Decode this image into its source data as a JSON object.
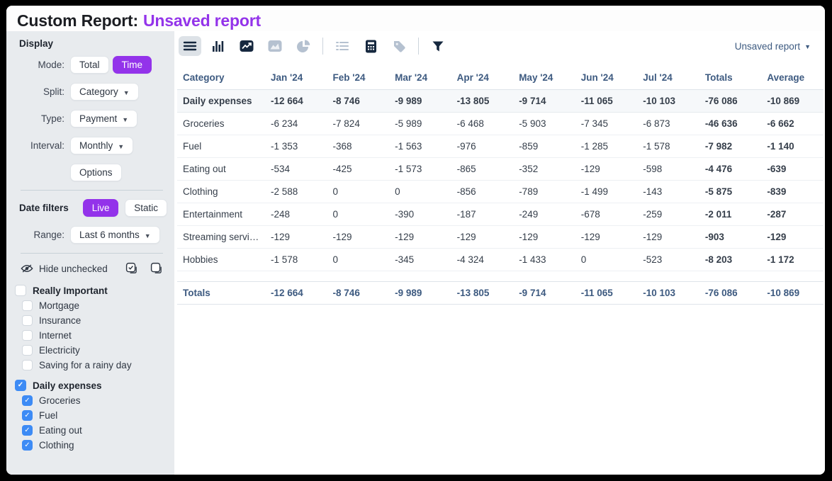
{
  "title": {
    "prefix": "Custom Report:",
    "report_name": "Unsaved report"
  },
  "colors": {
    "accent_purple": "#9333ea",
    "checkbox_blue": "#3d8bf5",
    "table_navy": "#3d5a80"
  },
  "sidebar": {
    "display": {
      "heading": "Display",
      "mode_label": "Mode:",
      "mode_options": [
        "Total",
        "Time"
      ],
      "mode_selected": "Time",
      "split_label": "Split:",
      "split_value": "Category",
      "type_label": "Type:",
      "type_value": "Payment",
      "interval_label": "Interval:",
      "interval_value": "Monthly",
      "options_button": "Options"
    },
    "date_filters": {
      "heading": "Date filters",
      "mode_options": [
        "Live",
        "Static"
      ],
      "mode_selected": "Live",
      "range_label": "Range:",
      "range_value": "Last 6 months"
    },
    "hide_unchecked_label": "Hide unchecked",
    "bulk_icons": [
      "check-all-icon",
      "uncheck-all-icon"
    ],
    "groups": [
      {
        "label": "Really Important",
        "checked": false,
        "children": [
          {
            "label": "Mortgage",
            "checked": false
          },
          {
            "label": "Insurance",
            "checked": false
          },
          {
            "label": "Internet",
            "checked": false
          },
          {
            "label": "Electricity",
            "checked": false
          },
          {
            "label": "Saving for a rainy day",
            "checked": false
          }
        ]
      },
      {
        "label": "Daily expenses",
        "checked": true,
        "children": [
          {
            "label": "Groceries",
            "checked": true
          },
          {
            "label": "Fuel",
            "checked": true
          },
          {
            "label": "Eating out",
            "checked": true
          },
          {
            "label": "Clothing",
            "checked": true
          }
        ]
      }
    ]
  },
  "toolbar": {
    "icons": [
      "table-rows-icon",
      "bar-chart-icon",
      "line-chart-icon",
      "area-chart-icon",
      "pie-chart-icon",
      "list-icon",
      "calculator-icon",
      "tag-icon",
      "filter-icon"
    ],
    "selected_icon": "table-rows-icon",
    "report_selector": "Unsaved report"
  },
  "table": {
    "columns": [
      "Category",
      "Jan '24",
      "Feb '24",
      "Mar '24",
      "Apr '24",
      "May '24",
      "Jun '24",
      "Jul '24",
      "Totals",
      "Average"
    ],
    "rows": [
      {
        "category": "Daily expenses",
        "bold": true,
        "values": [
          "-12 664",
          "-8 746",
          "-9 989",
          "-13 805",
          "-9 714",
          "-11 065",
          "-10 103",
          "-76 086",
          "-10 869"
        ]
      },
      {
        "category": "Groceries",
        "bold": false,
        "values": [
          "-6 234",
          "-7 824",
          "-5 989",
          "-6 468",
          "-5 903",
          "-7 345",
          "-6 873",
          "-46 636",
          "-6 662"
        ]
      },
      {
        "category": "Fuel",
        "bold": false,
        "values": [
          "-1 353",
          "-368",
          "-1 563",
          "-976",
          "-859",
          "-1 285",
          "-1 578",
          "-7 982",
          "-1 140"
        ]
      },
      {
        "category": "Eating out",
        "bold": false,
        "values": [
          "-534",
          "-425",
          "-1 573",
          "-865",
          "-352",
          "-129",
          "-598",
          "-4 476",
          "-639"
        ]
      },
      {
        "category": "Clothing",
        "bold": false,
        "values": [
          "-2 588",
          "0",
          "0",
          "-856",
          "-789",
          "-1 499",
          "-143",
          "-5 875",
          "-839"
        ]
      },
      {
        "category": "Entertainment",
        "bold": false,
        "values": [
          "-248",
          "0",
          "-390",
          "-187",
          "-249",
          "-678",
          "-259",
          "-2 011",
          "-287"
        ]
      },
      {
        "category": "Streaming servic...",
        "bold": false,
        "values": [
          "-129",
          "-129",
          "-129",
          "-129",
          "-129",
          "-129",
          "-129",
          "-903",
          "-129"
        ]
      },
      {
        "category": "Hobbies",
        "bold": false,
        "values": [
          "-1 578",
          "0",
          "-345",
          "-4 324",
          "-1 433",
          "0",
          "-523",
          "-8 203",
          "-1 172"
        ]
      }
    ],
    "totals_row": {
      "category": "Totals",
      "values": [
        "-12 664",
        "-8 746",
        "-9 989",
        "-13 805",
        "-9 714",
        "-11 065",
        "-10 103",
        "-76 086",
        "-10 869"
      ]
    }
  }
}
